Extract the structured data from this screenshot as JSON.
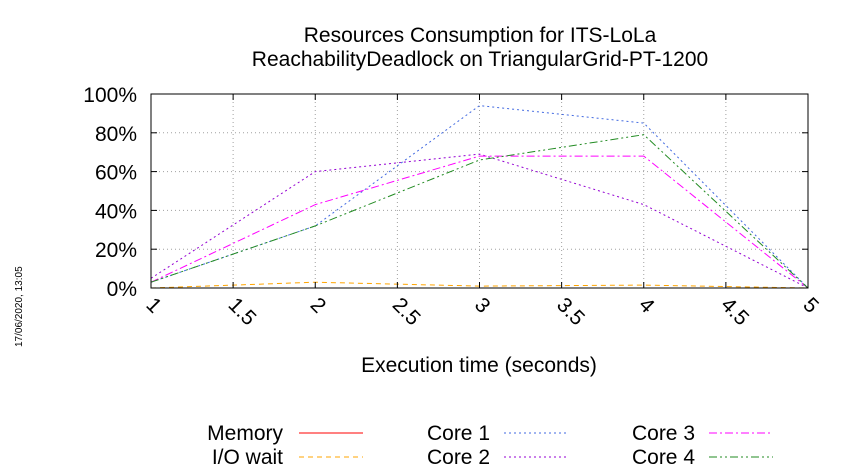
{
  "timestamp": "17/06/2020, 13:05",
  "chart_data": {
    "type": "line",
    "title": [
      "Resources Consumption for ITS-LoLa",
      "ReachabilityDeadlock on TriangularGrid-PT-1200"
    ],
    "xlabel": "Execution time (seconds)",
    "ylabel": "",
    "xlim": [
      1,
      5
    ],
    "ylim": [
      0,
      100
    ],
    "x_ticks": [
      "1",
      "1.5",
      "2",
      "2.5",
      "3",
      "3.5",
      "4",
      "4.5",
      "5"
    ],
    "y_ticks": [
      "0%",
      "20%",
      "40%",
      "60%",
      "80%",
      "100%"
    ],
    "grid": true,
    "series": [
      {
        "name": "Memory",
        "color": "#ff0000",
        "dash": "solid",
        "x": [
          1,
          2,
          3,
          4,
          5
        ],
        "y": [
          0,
          0,
          0,
          0,
          0
        ]
      },
      {
        "name": "I/O wait",
        "color": "#ffa500",
        "dash": "dashed",
        "x": [
          1,
          2,
          3,
          4,
          5
        ],
        "y": [
          0,
          3,
          1,
          1.5,
          0
        ]
      },
      {
        "name": "Core 1",
        "color": "#4169e1",
        "dash": "dotted",
        "x": [
          1,
          2,
          3,
          4,
          5
        ],
        "y": [
          3,
          32,
          94,
          85,
          0
        ]
      },
      {
        "name": "Core 2",
        "color": "#9400d3",
        "dash": "dotted",
        "x": [
          1,
          2,
          3,
          4,
          5
        ],
        "y": [
          5,
          60,
          69,
          43,
          0
        ]
      },
      {
        "name": "Core 3",
        "color": "#ff00ff",
        "dash": "dashdot",
        "x": [
          1,
          2,
          3,
          4,
          5
        ],
        "y": [
          3,
          43,
          68,
          68,
          0
        ]
      },
      {
        "name": "Core 4",
        "color": "#228b22",
        "dash": "dashdotdot",
        "x": [
          1,
          2,
          3,
          4,
          5
        ],
        "y": [
          3,
          32,
          66,
          79,
          0
        ]
      }
    ],
    "legend_position": "bottom"
  }
}
